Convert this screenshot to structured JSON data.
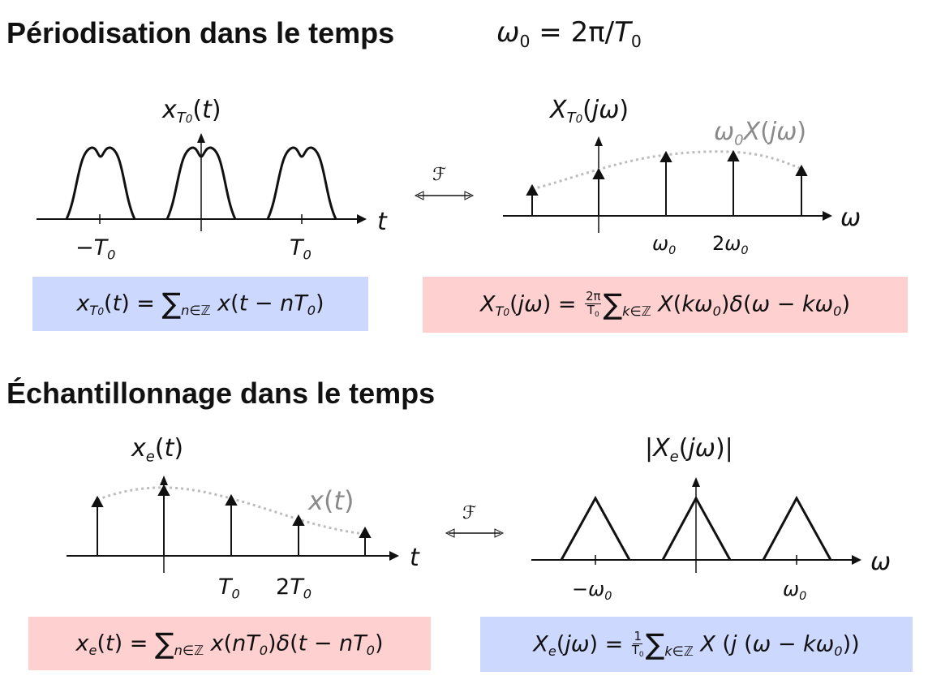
{
  "section1": {
    "heading": "Périodisation dans le temps",
    "relation": "ω0 = 2π/T0",
    "time_plot": {
      "ylabel": "xT0(t)",
      "xlabel": "t",
      "ticks": [
        "−T0",
        "T0"
      ]
    },
    "fourier_symbol": "ℱ",
    "freq_plot": {
      "ylabel": "XT0(jω)",
      "envelope_label": "ω0X(jω)",
      "xlabel": "ω",
      "ticks": [
        "ω0",
        "2ω0"
      ]
    },
    "formula_left": "xT0(t) = ∑n∈ℤ x(t − nT0)",
    "formula_right": "XT0(jω) = 2π/T0 ∑k∈ℤ X(kω0)δ(ω − kω0)"
  },
  "section2": {
    "heading": "Échantillonnage dans le temps",
    "time_plot": {
      "ylabel": "xe(t)",
      "envelope_label": "x(t)",
      "xlabel": "t",
      "ticks": [
        "T0",
        "2T0"
      ]
    },
    "fourier_symbol": "ℱ",
    "freq_plot": {
      "ylabel": "|Xe(jω)|",
      "xlabel": "ω",
      "ticks": [
        "−ω0",
        "ω0"
      ]
    },
    "formula_left": "xe(t) = ∑n∈ℤ x(nT0)δ(t − nT0)",
    "formula_right": "Xe(jω) = 1/T0 ∑k∈ℤ X(j(ω − kω0))"
  },
  "colors": {
    "blue_box": "#cdd8ff",
    "red_box": "#ffd0d0",
    "envelope": "#bdbdbd",
    "envelope_label": "#8a8a8a"
  }
}
